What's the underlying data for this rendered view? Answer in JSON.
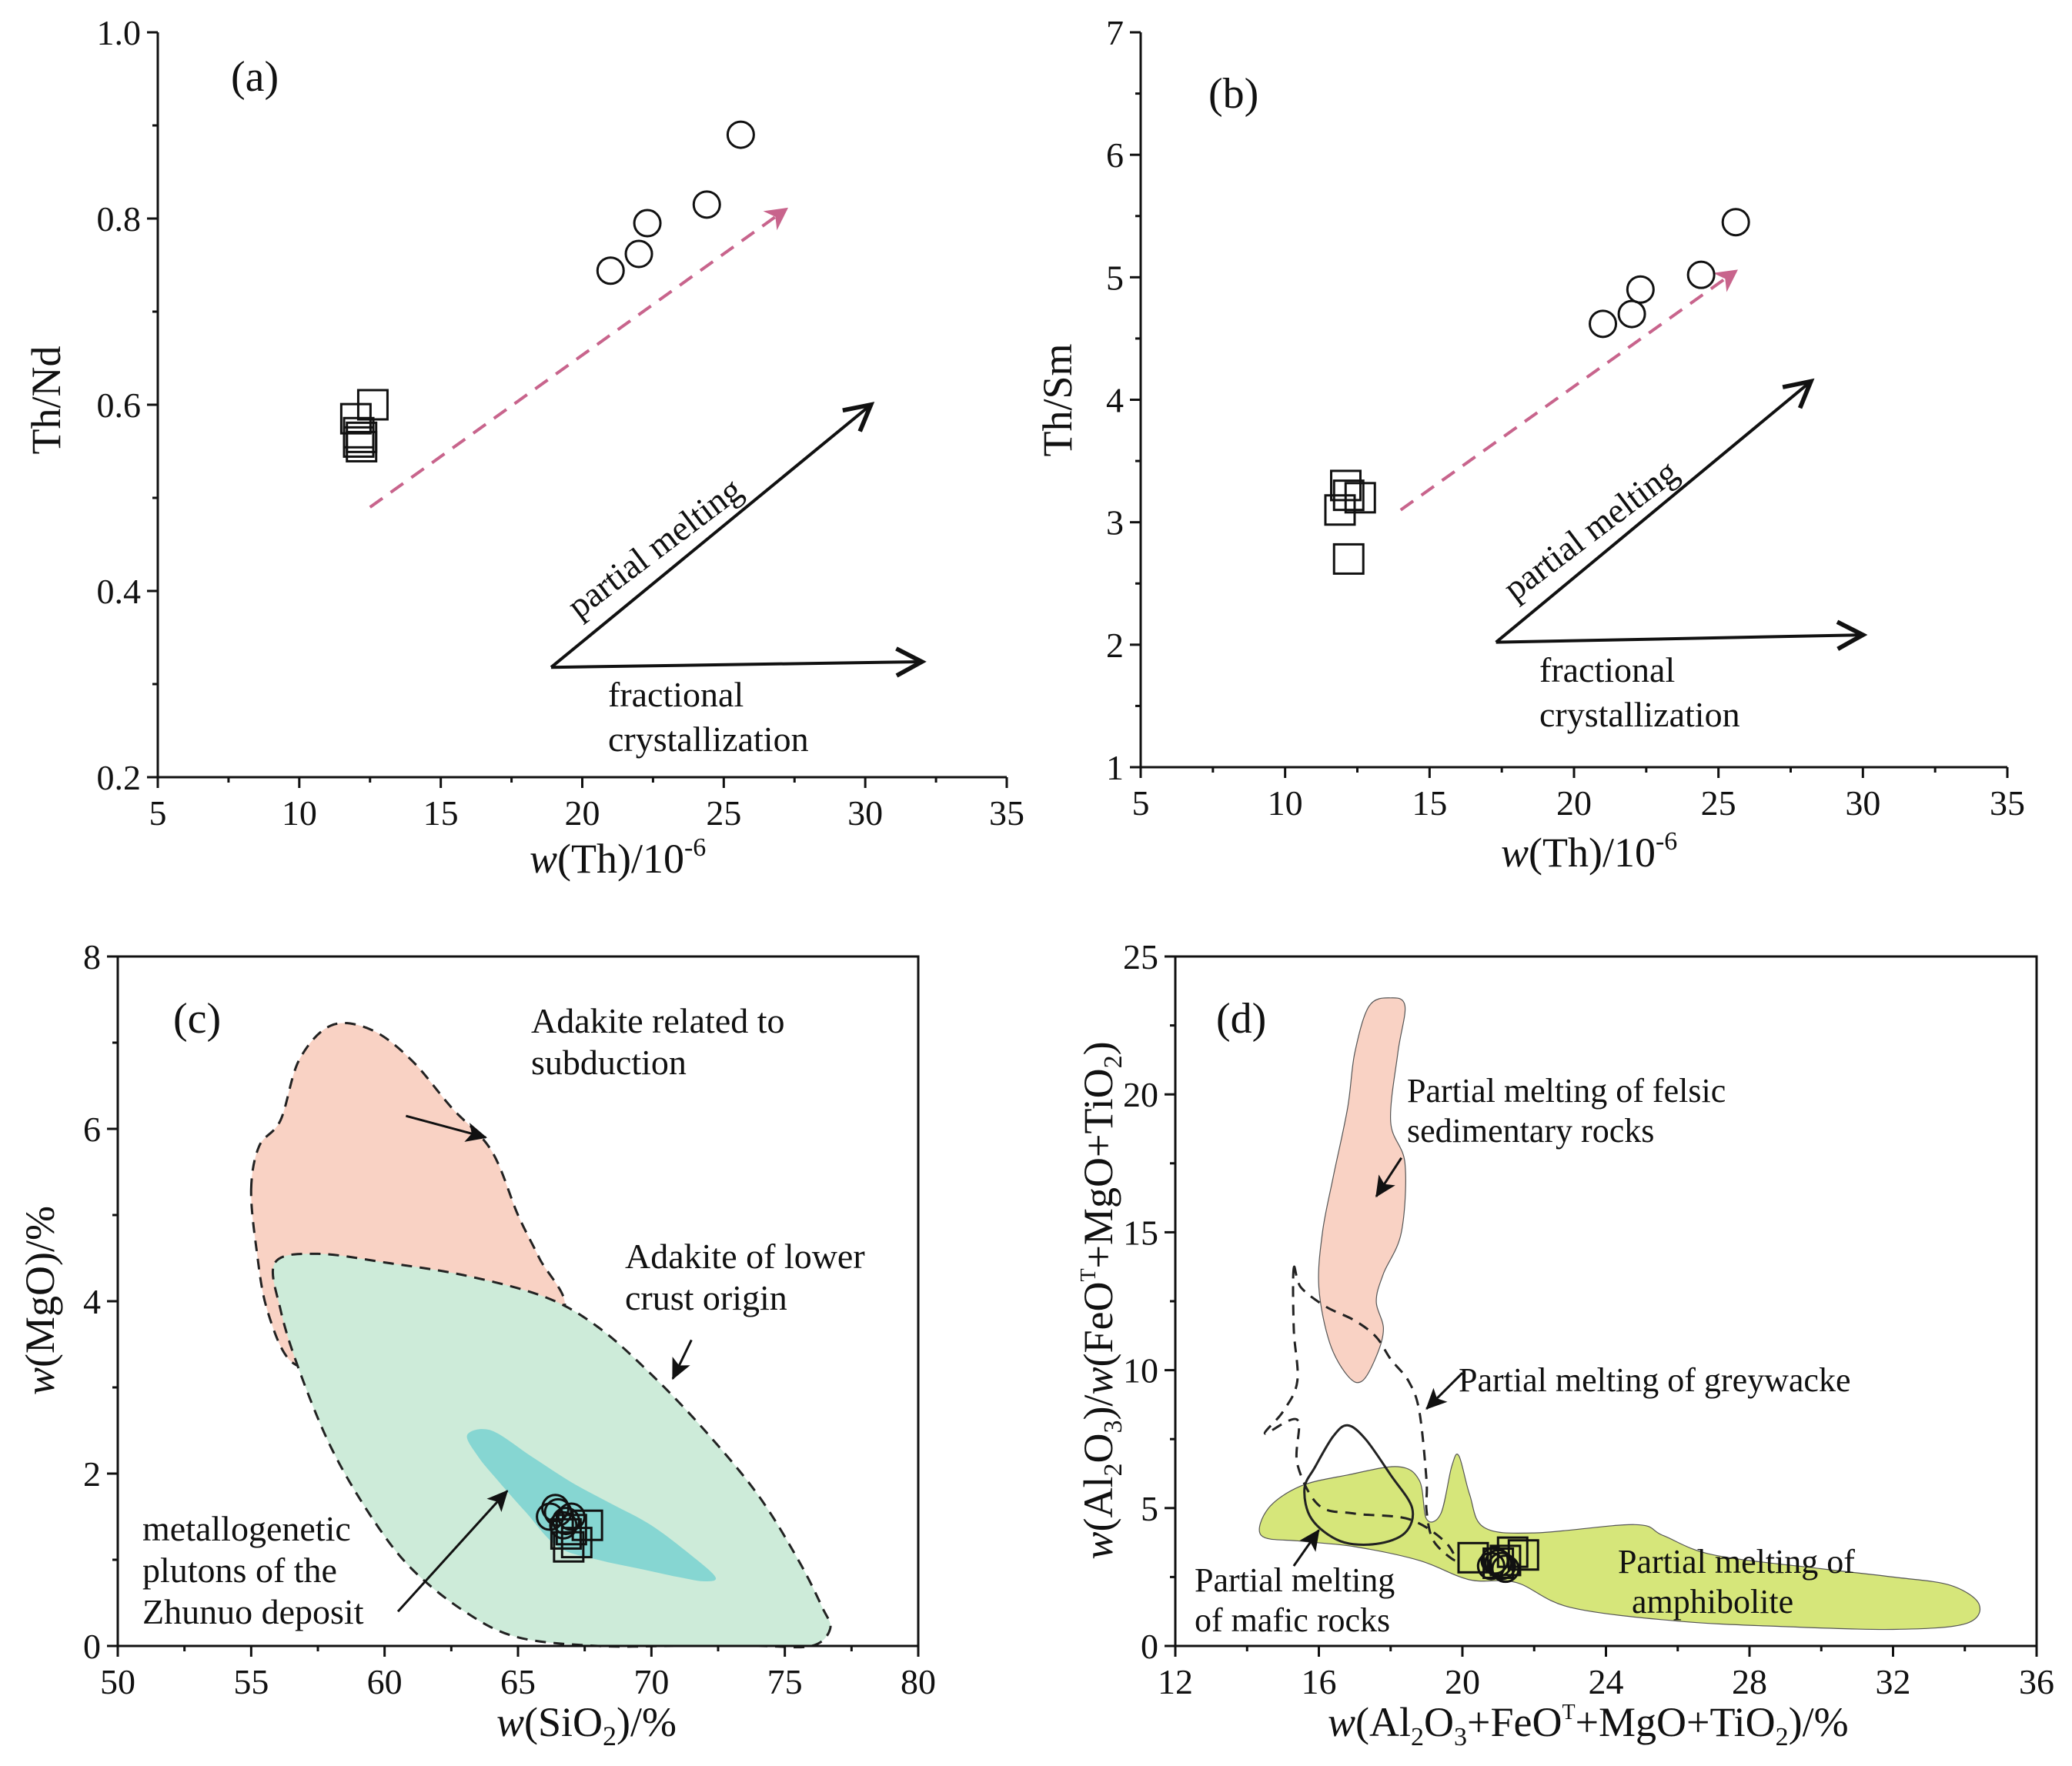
{
  "colors": {
    "trend_arrow": "#c8648c",
    "subduction_field": "#f9d2c4",
    "lower_crust_field": "#cdebd9",
    "zhunuo_field": "#86d6d2",
    "felsic_field": "#f9d2c4",
    "amphibolite_field": "#d6e67a"
  },
  "chart_data": [
    {
      "id": "a",
      "type": "scatter",
      "panel_label": "(a)",
      "xlabel": "w(Th)/10",
      "xlabel_exp": "-6",
      "ylabel": "Th/Nd",
      "xlim": [
        5,
        35
      ],
      "ylim": [
        0.2,
        1.0
      ],
      "xticks": [
        5,
        10,
        15,
        20,
        25,
        30,
        35
      ],
      "yticks": [
        0.2,
        0.4,
        0.6,
        0.8,
        1.0
      ],
      "ytick_labels": [
        "0.2",
        "0.4",
        "0.6",
        "0.8",
        "1.0"
      ],
      "series": [
        {
          "marker": "circle",
          "x": [
            21.0,
            22.0,
            22.3,
            24.4,
            25.6
          ],
          "y": [
            0.744,
            0.762,
            0.795,
            0.815,
            0.89
          ]
        },
        {
          "marker": "square",
          "x": [
            12.0,
            12.6,
            12.1,
            12.2,
            12.1,
            12.2
          ],
          "y": [
            0.585,
            0.6,
            0.57,
            0.565,
            0.56,
            0.555
          ]
        }
      ],
      "trend": {
        "from": [
          12.5,
          0.49
        ],
        "to": [
          27.2,
          0.81
        ]
      },
      "arrows": [
        {
          "label": "partial melting",
          "from": [
            18.9,
            0.318
          ],
          "to": [
            30.2,
            0.6
          ]
        },
        {
          "label": "fractional crystallization",
          "from": [
            18.9,
            0.318
          ],
          "to": [
            32.0,
            0.324
          ]
        }
      ]
    },
    {
      "id": "b",
      "type": "scatter",
      "panel_label": "(b)",
      "xlabel": "w(Th)/10",
      "xlabel_exp": "-6",
      "ylabel": "Th/Sm",
      "xlim": [
        5,
        35
      ],
      "ylim": [
        1,
        7
      ],
      "xticks": [
        5,
        10,
        15,
        20,
        25,
        30,
        35
      ],
      "yticks": [
        1,
        2,
        3,
        4,
        5,
        6,
        7
      ],
      "ytick_labels": [
        "1",
        "2",
        "3",
        "4",
        "5",
        "6",
        "7"
      ],
      "series": [
        {
          "marker": "circle",
          "x": [
            21.0,
            22.0,
            22.3,
            24.4,
            25.6
          ],
          "y": [
            4.62,
            4.7,
            4.9,
            5.02,
            5.45
          ]
        },
        {
          "marker": "square",
          "x": [
            12.1,
            12.6,
            11.9,
            12.2,
            12.2
          ],
          "y": [
            3.3,
            3.2,
            3.1,
            3.22,
            2.7
          ]
        }
      ],
      "trend": {
        "from": [
          14.0,
          3.1
        ],
        "to": [
          25.6,
          5.05
        ]
      },
      "arrows": [
        {
          "label": "partial melting",
          "from": [
            17.3,
            2.02
          ],
          "to": [
            28.2,
            4.15
          ]
        },
        {
          "label": "fractional crystallization",
          "from": [
            17.3,
            2.02
          ],
          "to": [
            30.0,
            2.08
          ]
        }
      ]
    },
    {
      "id": "c",
      "type": "scatter",
      "panel_label": "(c)",
      "xlabel": "w(SiO",
      "xlabel_sub": "2",
      "xlabel_end": ")/%",
      "ylabel": "w(MgO)/%",
      "xlim": [
        50,
        80
      ],
      "ylim": [
        0,
        8
      ],
      "xticks": [
        50,
        55,
        60,
        65,
        70,
        75,
        80
      ],
      "yticks": [
        0,
        2,
        4,
        6,
        8
      ],
      "ytick_labels": [
        "0",
        "2",
        "4",
        "6",
        "8"
      ],
      "fields": [
        {
          "label": "Adakite related to subduction",
          "fill": "subduction_field",
          "dashed": true,
          "points": [
            [
              55.0,
              5.3
            ],
            [
              55.3,
              5.8
            ],
            [
              56.1,
              6.1
            ],
            [
              56.8,
              6.8
            ],
            [
              58.0,
              7.2
            ],
            [
              59.5,
              7.15
            ],
            [
              61.0,
              6.8
            ],
            [
              62.5,
              6.25
            ],
            [
              64.0,
              5.75
            ],
            [
              65.0,
              5.0
            ],
            [
              65.8,
              4.5
            ],
            [
              66.7,
              3.9
            ],
            [
              64.0,
              3.6
            ],
            [
              61.0,
              3.35
            ],
            [
              58.0,
              3.25
            ],
            [
              56.5,
              3.3
            ],
            [
              55.6,
              3.9
            ],
            [
              55.2,
              4.6
            ]
          ]
        },
        {
          "label": "Adakite of lower crust origin",
          "fill": "lower_crust_field",
          "dashed": true,
          "points": [
            [
              55.9,
              4.45
            ],
            [
              57.5,
              4.55
            ],
            [
              60.0,
              4.45
            ],
            [
              63.0,
              4.3
            ],
            [
              66.0,
              4.05
            ],
            [
              68.0,
              3.7
            ],
            [
              70.0,
              3.15
            ],
            [
              72.0,
              2.5
            ],
            [
              74.0,
              1.75
            ],
            [
              75.5,
              1.0
            ],
            [
              76.4,
              0.45
            ],
            [
              76.7,
              0.2
            ],
            [
              76.0,
              0.0
            ],
            [
              74.0,
              0.0
            ],
            [
              71.0,
              0.0
            ],
            [
              68.0,
              0.0
            ],
            [
              65.0,
              0.1
            ],
            [
              63.0,
              0.4
            ],
            [
              61.0,
              0.9
            ],
            [
              59.5,
              1.5
            ],
            [
              58.0,
              2.3
            ],
            [
              56.8,
              3.2
            ],
            [
              56.1,
              3.9
            ]
          ]
        },
        {
          "label": "metallogenetic plutons of the Zhunuo deposit",
          "fill": "zhunuo_field",
          "dashed": false,
          "points": [
            [
              63.1,
              2.45
            ],
            [
              64.0,
              2.5
            ],
            [
              65.5,
              2.2
            ],
            [
              67.0,
              1.9
            ],
            [
              68.5,
              1.65
            ],
            [
              70.0,
              1.4
            ],
            [
              71.5,
              1.05
            ],
            [
              72.4,
              0.8
            ],
            [
              72.0,
              0.75
            ],
            [
              71.0,
              0.8
            ],
            [
              69.5,
              0.9
            ],
            [
              68.0,
              1.0
            ],
            [
              66.5,
              1.15
            ],
            [
              65.3,
              1.55
            ],
            [
              64.3,
              1.9
            ],
            [
              63.5,
              2.2
            ]
          ]
        }
      ],
      "series": [
        {
          "marker": "circle",
          "x": [
            66.2,
            66.5,
            66.8,
            67.0,
            66.4,
            66.7
          ],
          "y": [
            1.5,
            1.55,
            1.45,
            1.5,
            1.6,
            1.4
          ]
        },
        {
          "marker": "square",
          "x": [
            67.0,
            67.6,
            66.8,
            67.2,
            66.9
          ],
          "y": [
            1.35,
            1.4,
            1.3,
            1.2,
            1.15
          ]
        }
      ],
      "annotations": [
        {
          "lines": [
            "Adakite related to",
            "subduction"
          ],
          "arrow_from": [
            60.8,
            6.15
          ],
          "arrow_to": [
            63.8,
            5.9
          ]
        },
        {
          "lines": [
            "Adakite of lower",
            "crust origin"
          ],
          "arrow_from": [
            71.5,
            3.55
          ],
          "arrow_to": [
            70.8,
            3.1
          ]
        },
        {
          "lines": [
            "metallogenetic",
            "plutons of the",
            "Zhunuo deposit"
          ],
          "arrow_from": [
            60.5,
            0.4
          ],
          "arrow_to": [
            64.6,
            1.8
          ]
        }
      ]
    },
    {
      "id": "d",
      "type": "scatter",
      "panel_label": "(d)",
      "xlabel": "w(Al",
      "ylabel": "w(Al",
      "xlim": [
        12,
        36
      ],
      "ylim": [
        0,
        25
      ],
      "xticks": [
        12,
        16,
        20,
        24,
        28,
        32,
        36
      ],
      "yticks": [
        0,
        5,
        10,
        15,
        20,
        25
      ],
      "ytick_labels": [
        "0",
        "5",
        "10",
        "15",
        "20",
        "25"
      ],
      "fields": [
        {
          "label": "Partial melting of felsic sedimentary rocks",
          "fill": "felsic_field",
          "stroke": "thin",
          "points": [
            [
              17.4,
              23.2
            ],
            [
              18.0,
              23.5
            ],
            [
              18.4,
              23.2
            ],
            [
              18.2,
              21.5
            ],
            [
              18.0,
              19.0
            ],
            [
              18.4,
              17.5
            ],
            [
              18.3,
              15.0
            ],
            [
              17.8,
              13.5
            ],
            [
              17.6,
              12.5
            ],
            [
              17.8,
              11.5
            ],
            [
              17.6,
              10.5
            ],
            [
              17.2,
              9.6
            ],
            [
              16.8,
              9.8
            ],
            [
              16.3,
              11.0
            ],
            [
              16.0,
              13.0
            ],
            [
              16.1,
              15.0
            ],
            [
              16.4,
              17.0
            ],
            [
              16.8,
              19.5
            ],
            [
              17.0,
              21.5
            ]
          ]
        },
        {
          "label": "Partial melting of amphibolite",
          "fill": "amphibolite_field",
          "stroke": "thin",
          "points": [
            [
              14.4,
              4.0
            ],
            [
              14.6,
              5.0
            ],
            [
              15.5,
              5.8
            ],
            [
              16.8,
              6.2
            ],
            [
              18.2,
              6.5
            ],
            [
              18.8,
              6.0
            ],
            [
              19.0,
              4.6
            ],
            [
              19.4,
              4.8
            ],
            [
              19.7,
              6.5
            ],
            [
              19.9,
              6.9
            ],
            [
              20.2,
              5.5
            ],
            [
              20.6,
              4.3
            ],
            [
              22.0,
              4.1
            ],
            [
              24.8,
              4.4
            ],
            [
              25.6,
              4.0
            ],
            [
              27.0,
              3.3
            ],
            [
              30.0,
              2.8
            ],
            [
              32.0,
              2.5
            ],
            [
              33.6,
              2.2
            ],
            [
              34.4,
              1.5
            ],
            [
              34.0,
              0.8
            ],
            [
              32.0,
              0.6
            ],
            [
              29.0,
              0.7
            ],
            [
              26.0,
              0.9
            ],
            [
              23.0,
              1.4
            ],
            [
              21.5,
              2.3
            ],
            [
              20.2,
              2.4
            ],
            [
              18.8,
              3.1
            ],
            [
              17.0,
              3.6
            ],
            [
              15.5,
              3.8
            ]
          ]
        }
      ],
      "curves": [
        {
          "label": "Partial melting of greywacke",
          "style": "dashed",
          "points": [
            [
              15.3,
              13.7
            ],
            [
              15.5,
              13.0
            ],
            [
              16.2,
              12.3
            ],
            [
              17.0,
              11.8
            ],
            [
              17.6,
              11.2
            ],
            [
              18.0,
              10.4
            ],
            [
              18.5,
              9.6
            ],
            [
              18.8,
              8.5
            ],
            [
              19.0,
              6.0
            ],
            [
              19.0,
              4.9
            ],
            [
              19.2,
              3.8
            ],
            [
              19.8,
              3.1
            ],
            [
              19.5,
              3.8
            ],
            [
              18.5,
              4.6
            ],
            [
              17.0,
              4.8
            ],
            [
              16.0,
              5.1
            ],
            [
              15.4,
              6.6
            ],
            [
              15.4,
              8.2
            ],
            [
              14.5,
              7.7
            ],
            [
              15.0,
              8.5
            ],
            [
              15.4,
              9.6
            ],
            [
              15.3,
              11.5
            ]
          ]
        },
        {
          "label": "Partial melting of mafic rocks",
          "style": "solid",
          "points": [
            [
              15.9,
              6.5
            ],
            [
              16.4,
              7.6
            ],
            [
              16.8,
              8.0
            ],
            [
              17.3,
              7.5
            ],
            [
              18.0,
              6.2
            ],
            [
              18.6,
              5.0
            ],
            [
              18.4,
              4.1
            ],
            [
              17.6,
              3.7
            ],
            [
              16.6,
              3.8
            ],
            [
              15.8,
              4.6
            ],
            [
              15.6,
              5.7
            ]
          ]
        }
      ],
      "series": [
        {
          "marker": "circle",
          "x": [
            20.8,
            21.0,
            21.2,
            20.9,
            21.1
          ],
          "y": [
            2.9,
            3.0,
            2.8,
            3.1,
            2.9
          ]
        },
        {
          "marker": "square",
          "x": [
            20.3,
            21.2,
            21.7,
            21.0,
            21.4
          ],
          "y": [
            3.2,
            3.1,
            3.3,
            3.0,
            3.4
          ]
        }
      ],
      "annotations": [
        {
          "lines": [
            "Partial melting of felsic",
            "sedimentary rocks"
          ],
          "arrow_from": [
            18.3,
            17.7
          ],
          "arrow_to": [
            17.6,
            16.3
          ]
        },
        {
          "lines": [
            "Partial melting of greywacke"
          ],
          "arrow_from": [
            20.0,
            9.9
          ],
          "arrow_to": [
            19.0,
            8.6
          ]
        },
        {
          "lines": [
            "Partial melting",
            "of mafic rocks"
          ],
          "arrow_from": [
            15.3,
            2.9
          ],
          "arrow_to": [
            16.0,
            4.2
          ]
        },
        {
          "lines": [
            "Partial melting of",
            "amphibolite"
          ]
        }
      ]
    }
  ]
}
